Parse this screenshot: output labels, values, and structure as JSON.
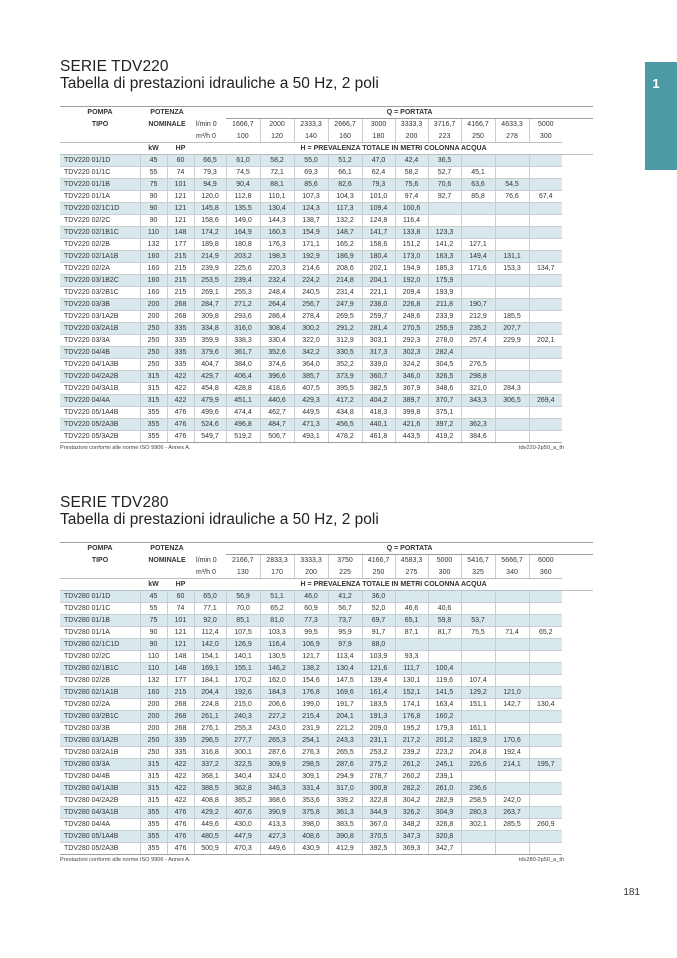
{
  "side_tab": "1",
  "page_number": "181",
  "labels": {
    "pompa": "POMPA",
    "tipo": "TIPO",
    "potenza": "POTENZA",
    "nominale": "NOMINALE",
    "q_portata": "Q = PORTATA",
    "lmin": "l/min 0",
    "m3h": "m³/h 0",
    "kw": "kW",
    "hp": "HP",
    "h_prevalenza": "H = PREVALENZA TOTALE IN METRI COLONNA ACQUA"
  },
  "sections": [
    {
      "title": "SERIE TDV220",
      "subtitle": "Tabella di prestazioni idrauliche a 50 Hz, 2 poli",
      "flow_lmin": [
        "1666,7",
        "2000",
        "2333,3",
        "2666,7",
        "3000",
        "3333,3",
        "3716,7",
        "4166,7",
        "4633,3",
        "5000"
      ],
      "flow_m3h": [
        "100",
        "120",
        "140",
        "160",
        "180",
        "200",
        "223",
        "250",
        "278",
        "300"
      ],
      "rows": [
        {
          "model": "TDV220 01/1D",
          "kw": "45",
          "hp": "60",
          "h": [
            "66,5",
            "61,0",
            "58,2",
            "55,0",
            "51,2",
            "47,0",
            "42,4",
            "36,5",
            "",
            "",
            ""
          ]
        },
        {
          "model": "TDV220 01/1C",
          "kw": "55",
          "hp": "74",
          "h": [
            "79,3",
            "74,5",
            "72,1",
            "69,3",
            "66,1",
            "62,4",
            "58,2",
            "52,7",
            "45,1",
            "",
            ""
          ]
        },
        {
          "model": "TDV220 01/1B",
          "kw": "75",
          "hp": "101",
          "h": [
            "94,9",
            "90,4",
            "88,1",
            "85,6",
            "82,6",
            "79,3",
            "75,6",
            "70,6",
            "63,6",
            "54,5",
            ""
          ]
        },
        {
          "model": "TDV220 01/1A",
          "kw": "90",
          "hp": "121",
          "h": [
            "120,0",
            "112,8",
            "110,1",
            "107,3",
            "104,3",
            "101,0",
            "97,4",
            "92,7",
            "85,8",
            "76,6",
            "67,4"
          ]
        },
        {
          "model": "TDV220 02/1C1D",
          "kw": "90",
          "hp": "121",
          "h": [
            "145,8",
            "135,5",
            "130,4",
            "124,3",
            "117,3",
            "109,4",
            "100,6",
            "",
            "",
            "",
            ""
          ]
        },
        {
          "model": "TDV220 02/2C",
          "kw": "90",
          "hp": "121",
          "h": [
            "158,6",
            "149,0",
            "144,3",
            "138,7",
            "132,2",
            "124,8",
            "116,4",
            "",
            "",
            "",
            ""
          ]
        },
        {
          "model": "TDV220 02/1B1C",
          "kw": "110",
          "hp": "148",
          "h": [
            "174,2",
            "164,9",
            "160,3",
            "154,9",
            "148,7",
            "141,7",
            "133,8",
            "123,3",
            "",
            "",
            ""
          ]
        },
        {
          "model": "TDV220 02/2B",
          "kw": "132",
          "hp": "177",
          "h": [
            "189,8",
            "180,8",
            "176,3",
            "171,1",
            "165,2",
            "158,6",
            "151,2",
            "141,2",
            "127,1",
            "",
            ""
          ]
        },
        {
          "model": "TDV220 02/1A1B",
          "kw": "160",
          "hp": "215",
          "h": [
            "214,9",
            "203,2",
            "198,3",
            "192,9",
            "186,9",
            "180,4",
            "173,0",
            "163,3",
            "149,4",
            "131,1",
            ""
          ]
        },
        {
          "model": "TDV220 02/2A",
          "kw": "160",
          "hp": "215",
          "h": [
            "239,9",
            "225,6",
            "220,3",
            "214,6",
            "208,6",
            "202,1",
            "194,9",
            "185,3",
            "171,6",
            "153,3",
            "134,7"
          ]
        },
        {
          "model": "TDV220 03/1B2C",
          "kw": "160",
          "hp": "215",
          "h": [
            "253,5",
            "239,4",
            "232,4",
            "224,2",
            "214,8",
            "204,1",
            "192,0",
            "175,9",
            "",
            "",
            ""
          ]
        },
        {
          "model": "TDV220 03/2B1C",
          "kw": "160",
          "hp": "215",
          "h": [
            "269,1",
            "255,3",
            "248,4",
            "240,5",
            "231,4",
            "221,1",
            "209,4",
            "193,9",
            "",
            "",
            ""
          ]
        },
        {
          "model": "TDV220 03/3B",
          "kw": "200",
          "hp": "268",
          "h": [
            "284,7",
            "271,2",
            "264,4",
            "256,7",
            "247,9",
            "238,0",
            "226,8",
            "211,8",
            "190,7",
            "",
            ""
          ]
        },
        {
          "model": "TDV220 03/1A2B",
          "kw": "200",
          "hp": "268",
          "h": [
            "309,8",
            "293,6",
            "286,4",
            "278,4",
            "269,5",
            "259,7",
            "248,6",
            "233,9",
            "212,9",
            "185,5",
            ""
          ]
        },
        {
          "model": "TDV220 03/2A1B",
          "kw": "250",
          "hp": "335",
          "h": [
            "334,8",
            "316,0",
            "308,4",
            "300,2",
            "291,2",
            "281,4",
            "270,5",
            "255,9",
            "235,2",
            "207,7",
            ""
          ]
        },
        {
          "model": "TDV220 03/3A",
          "kw": "250",
          "hp": "335",
          "h": [
            "359,9",
            "338,3",
            "330,4",
            "322,0",
            "312,9",
            "303,1",
            "292,3",
            "278,0",
            "257,4",
            "229,9",
            "202,1"
          ]
        },
        {
          "model": "TDV220 04/4B",
          "kw": "250",
          "hp": "335",
          "h": [
            "379,6",
            "361,7",
            "352,6",
            "342,2",
            "330,5",
            "317,3",
            "302,3",
            "282,4",
            "",
            "",
            ""
          ]
        },
        {
          "model": "TDV220 04/1A3B",
          "kw": "250",
          "hp": "335",
          "h": [
            "404,7",
            "384,0",
            "374,6",
            "364,0",
            "352,2",
            "339,0",
            "324,2",
            "304,5",
            "276,5",
            "",
            ""
          ]
        },
        {
          "model": "TDV220 04/2A2B",
          "kw": "315",
          "hp": "422",
          "h": [
            "429,7",
            "406,4",
            "396,6",
            "385,7",
            "373,9",
            "360,7",
            "346,0",
            "326,5",
            "298,8",
            "",
            ""
          ]
        },
        {
          "model": "TDV220 04/3A1B",
          "kw": "315",
          "hp": "422",
          "h": [
            "454,8",
            "428,8",
            "418,6",
            "407,5",
            "395,5",
            "382,5",
            "367,9",
            "348,6",
            "321,0",
            "284,3",
            ""
          ]
        },
        {
          "model": "TDV220 04/4A",
          "kw": "315",
          "hp": "422",
          "h": [
            "479,9",
            "451,1",
            "440,6",
            "429,3",
            "417,2",
            "404,2",
            "389,7",
            "370,7",
            "343,3",
            "306,5",
            "269,4"
          ]
        },
        {
          "model": "TDV220 05/1A4B",
          "kw": "355",
          "hp": "476",
          "h": [
            "499,6",
            "474,4",
            "462,7",
            "449,5",
            "434,8",
            "418,3",
            "399,8",
            "375,1",
            "",
            "",
            ""
          ]
        },
        {
          "model": "TDV220 05/2A3B",
          "kw": "355",
          "hp": "476",
          "h": [
            "524,6",
            "496,8",
            "484,7",
            "471,3",
            "456,5",
            "440,1",
            "421,6",
            "397,2",
            "362,3",
            "",
            ""
          ]
        },
        {
          "model": "TDV220 05/3A2B",
          "kw": "355",
          "hp": "476",
          "h": [
            "549,7",
            "519,2",
            "506,7",
            "493,1",
            "478,2",
            "461,8",
            "443,5",
            "419,2",
            "384,6",
            "",
            ""
          ]
        }
      ],
      "note_left": "Prestazioni conformi alle norme ISO 9906 - Annex A.",
      "note_right": "tdv220-2p50_a_th"
    },
    {
      "title": "SERIE TDV280",
      "subtitle": "Tabella di prestazioni idrauliche a 50 Hz, 2 poli",
      "flow_lmin": [
        "2166,7",
        "2833,3",
        "3333,3",
        "3750",
        "4166,7",
        "4583,3",
        "5000",
        "5416,7",
        "5666,7",
        "6000"
      ],
      "flow_m3h": [
        "130",
        "170",
        "200",
        "225",
        "250",
        "275",
        "300",
        "325",
        "340",
        "360"
      ],
      "rows": [
        {
          "model": "TDV280 01/1D",
          "kw": "45",
          "hp": "60",
          "h": [
            "65,0",
            "56,9",
            "51,1",
            "46,0",
            "41,2",
            "36,0",
            "",
            "",
            "",
            "",
            ""
          ]
        },
        {
          "model": "TDV280 01/1C",
          "kw": "55",
          "hp": "74",
          "h": [
            "77,1",
            "70,0",
            "65,2",
            "60,9",
            "56,7",
            "52,0",
            "46,6",
            "40,6",
            "",
            "",
            ""
          ]
        },
        {
          "model": "TDV280 01/1B",
          "kw": "75",
          "hp": "101",
          "h": [
            "92,0",
            "85,1",
            "81,0",
            "77,3",
            "73,7",
            "69,7",
            "65,1",
            "59,8",
            "53,7",
            "",
            ""
          ]
        },
        {
          "model": "TDV280 01/1A",
          "kw": "90",
          "hp": "121",
          "h": [
            "112,4",
            "107,5",
            "103,3",
            "99,5",
            "95,9",
            "91,7",
            "87,1",
            "81,7",
            "75,5",
            "71,4",
            "65,2"
          ]
        },
        {
          "model": "TDV280 02/1C1D",
          "kw": "90",
          "hp": "121",
          "h": [
            "142,0",
            "126,9",
            "116,4",
            "106,9",
            "97,9",
            "88,0",
            "",
            "",
            "",
            "",
            ""
          ]
        },
        {
          "model": "TDV280 02/2C",
          "kw": "110",
          "hp": "148",
          "h": [
            "154,1",
            "140,1",
            "130,5",
            "121,7",
            "113,4",
            "103,9",
            "93,3",
            "",
            "",
            "",
            ""
          ]
        },
        {
          "model": "TDV280 02/1B1C",
          "kw": "110",
          "hp": "148",
          "h": [
            "169,1",
            "155,1",
            "146,2",
            "138,2",
            "130,4",
            "121,6",
            "111,7",
            "100,4",
            "",
            "",
            ""
          ]
        },
        {
          "model": "TDV280 02/2B",
          "kw": "132",
          "hp": "177",
          "h": [
            "184,1",
            "170,2",
            "162,0",
            "154,6",
            "147,5",
            "139,4",
            "130,1",
            "119,6",
            "107,4",
            "",
            ""
          ]
        },
        {
          "model": "TDV280 02/1A1B",
          "kw": "160",
          "hp": "215",
          "h": [
            "204,4",
            "192,6",
            "184,3",
            "176,8",
            "169,6",
            "161,4",
            "152,1",
            "141,5",
            "129,2",
            "121,0",
            ""
          ]
        },
        {
          "model": "TDV280 02/2A",
          "kw": "200",
          "hp": "268",
          "h": [
            "224,8",
            "215,0",
            "206,6",
            "199,0",
            "191,7",
            "183,5",
            "174,1",
            "163,4",
            "151,1",
            "142,7",
            "130,4"
          ]
        },
        {
          "model": "TDV280 03/2B1C",
          "kw": "200",
          "hp": "268",
          "h": [
            "261,1",
            "240,3",
            "227,2",
            "215,4",
            "204,1",
            "191,3",
            "176,8",
            "160,2",
            "",
            "",
            ""
          ]
        },
        {
          "model": "TDV280 03/3B",
          "kw": "200",
          "hp": "268",
          "h": [
            "276,1",
            "255,3",
            "243,0",
            "231,9",
            "221,2",
            "209,0",
            "195,2",
            "179,3",
            "161,1",
            "",
            ""
          ]
        },
        {
          "model": "TDV280 03/1A2B",
          "kw": "250",
          "hp": "335",
          "h": [
            "296,5",
            "277,7",
            "265,3",
            "254,1",
            "243,3",
            "231,1",
            "217,2",
            "201,2",
            "182,9",
            "170,6",
            ""
          ]
        },
        {
          "model": "TDV280 03/2A1B",
          "kw": "250",
          "hp": "335",
          "h": [
            "316,8",
            "300,1",
            "287,6",
            "276,3",
            "265,5",
            "253,2",
            "239,2",
            "223,2",
            "204,8",
            "192,4",
            ""
          ]
        },
        {
          "model": "TDV280 03/3A",
          "kw": "315",
          "hp": "422",
          "h": [
            "337,2",
            "322,5",
            "309,9",
            "298,5",
            "287,6",
            "275,2",
            "261,2",
            "245,1",
            "226,6",
            "214,1",
            "195,7"
          ]
        },
        {
          "model": "TDV280 04/4B",
          "kw": "315",
          "hp": "422",
          "h": [
            "368,1",
            "340,4",
            "324,0",
            "309,1",
            "294,9",
            "278,7",
            "260,2",
            "239,1",
            "",
            "",
            ""
          ]
        },
        {
          "model": "TDV280 04/1A3B",
          "kw": "315",
          "hp": "422",
          "h": [
            "388,5",
            "362,8",
            "346,3",
            "331,4",
            "317,0",
            "300,8",
            "282,2",
            "261,0",
            "236,6",
            "",
            ""
          ]
        },
        {
          "model": "TDV280 04/2A2B",
          "kw": "315",
          "hp": "422",
          "h": [
            "408,8",
            "385,2",
            "368,6",
            "353,6",
            "339,2",
            "322,8",
            "304,2",
            "282,9",
            "258,5",
            "242,0",
            ""
          ]
        },
        {
          "model": "TDV280 04/3A1B",
          "kw": "355",
          "hp": "476",
          "h": [
            "429,2",
            "407,6",
            "390,9",
            "375,8",
            "361,3",
            "344,9",
            "326,2",
            "304,9",
            "280,3",
            "263,7",
            ""
          ]
        },
        {
          "model": "TDV280 04/4A",
          "kw": "355",
          "hp": "476",
          "h": [
            "449,6",
            "430,0",
            "413,3",
            "398,0",
            "383,5",
            "367,0",
            "348,2",
            "326,8",
            "302,1",
            "285,5",
            "260,9"
          ]
        },
        {
          "model": "TDV280 05/1A4B",
          "kw": "355",
          "hp": "476",
          "h": [
            "480,5",
            "447,9",
            "427,3",
            "408,6",
            "390,8",
            "370,5",
            "347,3",
            "320,8",
            "",
            "",
            ""
          ]
        },
        {
          "model": "TDV280 05/2A3B",
          "kw": "355",
          "hp": "476",
          "h": [
            "500,9",
            "470,3",
            "449,6",
            "430,9",
            "412,9",
            "392,5",
            "369,3",
            "342,7",
            "",
            "",
            ""
          ]
        }
      ],
      "note_left": "Prestazioni conformi alle norme ISO 9906 - Annex A.",
      "note_right": "tdv280-2p50_a_th"
    }
  ]
}
